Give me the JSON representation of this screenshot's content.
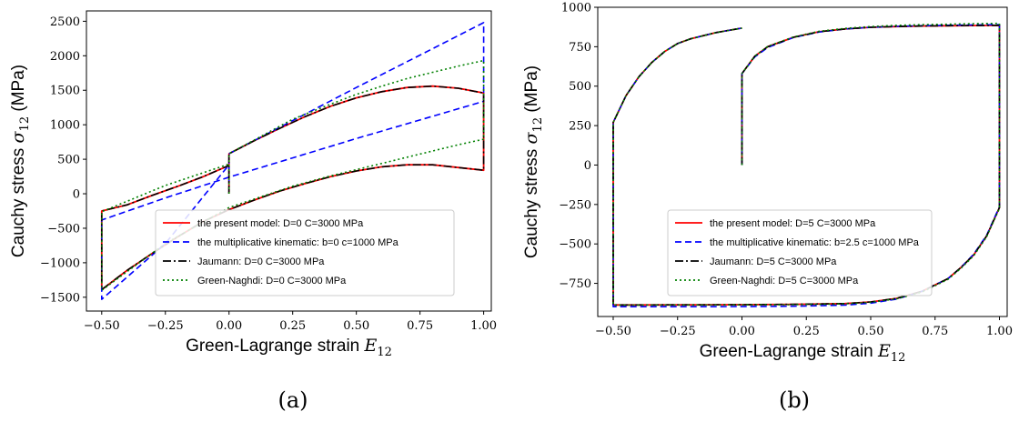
{
  "chart_data": [
    {
      "type": "line",
      "panel_label": "(a)",
      "xlabel": "Green-Lagrange strain",
      "xlabel_math": "E",
      "xlabel_sub": "12",
      "ylabel": "Cauchy stress",
      "ylabel_math": "σ",
      "ylabel_sub": "12",
      "ylabel_unit": "(MPa)",
      "xlim": [
        -0.56,
        1.03
      ],
      "ylim": [
        -1700,
        2650
      ],
      "xticks": [
        -0.5,
        -0.25,
        0.0,
        0.25,
        0.5,
        0.75,
        1.0
      ],
      "xtick_labels": [
        "−0.50",
        "−0.25",
        "0.00",
        "0.25",
        "0.50",
        "0.75",
        "1.00"
      ],
      "yticks": [
        -1500,
        -1000,
        -500,
        0,
        500,
        1000,
        1500,
        2000,
        2500
      ],
      "ytick_labels": [
        "−1500",
        "−1000",
        "−500",
        "0",
        "500",
        "1000",
        "1500",
        "2000",
        "2500"
      ],
      "legend_position": "lower-center",
      "series": [
        {
          "name": "the present model: D=0 C=3000 MPa",
          "color": "#ff0000",
          "dash": "solid",
          "x": [
            0,
            0,
            0.1,
            0.2,
            0.3,
            0.4,
            0.5,
            0.6,
            0.7,
            0.8,
            0.9,
            1.0,
            1.0,
            0.9,
            0.8,
            0.7,
            0.6,
            0.5,
            0.4,
            0.3,
            0.2,
            0.1,
            0.0,
            -0.1,
            -0.2,
            -0.3,
            -0.4,
            -0.5,
            -0.5,
            -0.4,
            -0.3,
            -0.2,
            -0.1,
            0.0
          ],
          "y": [
            0,
            580,
            770,
            950,
            1120,
            1270,
            1390,
            1480,
            1540,
            1560,
            1530,
            1460,
            340,
            380,
            420,
            420,
            390,
            330,
            250,
            150,
            40,
            -90,
            -230,
            -400,
            -620,
            -860,
            -1110,
            -1390,
            -250,
            -160,
            -20,
            110,
            250,
            410
          ]
        },
        {
          "name": "the multiplicative kinematic: b=0 c=1000 MPa",
          "color": "#0000ff",
          "dash": "7,4",
          "x": [
            0,
            0,
            0.25,
            0.5,
            0.75,
            1.0,
            1.0,
            0.75,
            0.5,
            0.25,
            0.0,
            -0.25,
            -0.5,
            -0.5,
            -0.25,
            0.0
          ],
          "y": [
            0,
            580,
            1060,
            1540,
            2010,
            2480,
            1340,
            1070,
            800,
            520,
            240,
            -60,
            -380,
            -1530,
            -720,
            420
          ]
        },
        {
          "name": "Jaumann: D=0 C=3000 MPa",
          "color": "#000000",
          "dash": "9,3,2,3",
          "x": [
            0,
            0,
            0.1,
            0.2,
            0.3,
            0.4,
            0.5,
            0.6,
            0.7,
            0.8,
            0.9,
            1.0,
            1.0,
            0.9,
            0.8,
            0.7,
            0.6,
            0.5,
            0.4,
            0.3,
            0.2,
            0.1,
            0.0,
            -0.1,
            -0.2,
            -0.3,
            -0.4,
            -0.5,
            -0.5,
            -0.4,
            -0.3,
            -0.2,
            -0.1,
            0.0
          ],
          "y": [
            0,
            580,
            770,
            950,
            1120,
            1270,
            1390,
            1480,
            1540,
            1560,
            1530,
            1460,
            340,
            380,
            420,
            420,
            390,
            330,
            250,
            150,
            40,
            -90,
            -230,
            -400,
            -620,
            -860,
            -1110,
            -1390,
            -250,
            -160,
            -20,
            110,
            250,
            410
          ]
        },
        {
          "name": "Green-Naghdi: D=0 C=3000 MPa",
          "color": "#008000",
          "dash": "2,3",
          "x": [
            0,
            0,
            0.25,
            0.4,
            0.5,
            0.6,
            0.7,
            0.8,
            0.9,
            1.0,
            1.0,
            0.9,
            0.8,
            0.7,
            0.6,
            0.5,
            0.4,
            0.25,
            0.0,
            -0.25,
            -0.5,
            -0.5,
            -0.25,
            0.0
          ],
          "y": [
            0,
            580,
            1080,
            1300,
            1440,
            1560,
            1670,
            1760,
            1850,
            1930,
            790,
            710,
            620,
            530,
            440,
            350,
            260,
            110,
            -200,
            -720,
            -1400,
            -260,
            120,
            430
          ]
        }
      ]
    },
    {
      "type": "line",
      "panel_label": "(b)",
      "xlabel": "Green-Lagrange strain",
      "xlabel_math": "E",
      "xlabel_sub": "12",
      "ylabel": "Cauchy stress",
      "ylabel_math": "σ",
      "ylabel_sub": "12",
      "ylabel_unit": "(MPa)",
      "xlim": [
        -0.56,
        1.03
      ],
      "ylim": [
        -960,
        1000
      ],
      "xticks": [
        -0.5,
        -0.25,
        0.0,
        0.25,
        0.5,
        0.75,
        1.0
      ],
      "xtick_labels": [
        "−0.50",
        "−0.25",
        "0.00",
        "0.25",
        "0.50",
        "0.75",
        "1.00"
      ],
      "yticks": [
        -750,
        -500,
        -250,
        0,
        250,
        500,
        750,
        1000
      ],
      "ytick_labels": [
        "−750",
        "−500",
        "−250",
        "0",
        "250",
        "500",
        "750",
        "1000"
      ],
      "legend_position": "lower-center",
      "series": [
        {
          "name": "the present model: D=5 C=3000 MPa",
          "color": "#ff0000",
          "dash": "solid",
          "x": [
            0,
            0,
            0.05,
            0.1,
            0.2,
            0.3,
            0.4,
            0.5,
            0.6,
            0.7,
            0.8,
            0.9,
            1.0,
            1.0,
            0.95,
            0.9,
            0.85,
            0.8,
            0.7,
            0.6,
            0.5,
            0.4,
            0.2,
            0.0,
            -0.2,
            -0.5,
            -0.5,
            -0.45,
            -0.4,
            -0.35,
            -0.3,
            -0.25,
            -0.2,
            -0.1,
            0.0
          ],
          "y": [
            0,
            580,
            690,
            750,
            810,
            845,
            862,
            873,
            878,
            881,
            883,
            884,
            885,
            -270,
            -450,
            -570,
            -650,
            -720,
            -800,
            -845,
            -868,
            -878,
            -883,
            -885,
            -886,
            -887,
            270,
            440,
            560,
            650,
            720,
            770,
            800,
            840,
            868
          ]
        },
        {
          "name": "the multiplicative kinematic: b=2.5 c=1000 MPa",
          "color": "#0000ff",
          "dash": "7,4",
          "x": [
            0,
            0,
            0.05,
            0.1,
            0.2,
            0.3,
            0.4,
            0.5,
            0.6,
            0.7,
            0.8,
            0.9,
            1.0,
            1.0,
            0.95,
            0.9,
            0.85,
            0.8,
            0.7,
            0.6,
            0.5,
            0.4,
            0.2,
            0.0,
            -0.2,
            -0.5,
            -0.5,
            -0.45,
            -0.4,
            -0.35,
            -0.3,
            -0.25,
            -0.2,
            -0.1,
            0.0
          ],
          "y": [
            0,
            580,
            685,
            745,
            808,
            843,
            862,
            873,
            879,
            883,
            886,
            888,
            890,
            -265,
            -445,
            -565,
            -650,
            -720,
            -800,
            -850,
            -875,
            -888,
            -895,
            -897,
            -898,
            -898,
            270,
            440,
            560,
            650,
            720,
            770,
            800,
            840,
            868
          ]
        },
        {
          "name": "Jaumann: D=5 C=3000 MPa",
          "color": "#000000",
          "dash": "9,3,2,3",
          "x": [
            0,
            0,
            0.05,
            0.1,
            0.2,
            0.3,
            0.4,
            0.5,
            0.6,
            0.7,
            0.8,
            0.9,
            1.0,
            1.0,
            0.95,
            0.9,
            0.85,
            0.8,
            0.7,
            0.6,
            0.5,
            0.4,
            0.2,
            0.0,
            -0.2,
            -0.5,
            -0.5,
            -0.45,
            -0.4,
            -0.35,
            -0.3,
            -0.25,
            -0.2,
            -0.1,
            0.0
          ],
          "y": [
            0,
            580,
            690,
            750,
            810,
            845,
            862,
            873,
            878,
            881,
            883,
            884,
            885,
            -270,
            -450,
            -570,
            -650,
            -720,
            -800,
            -845,
            -868,
            -878,
            -883,
            -885,
            -886,
            -887,
            270,
            440,
            560,
            650,
            720,
            770,
            800,
            840,
            868
          ]
        },
        {
          "name": "Green-Naghdi: D=5 C=3000 MPa",
          "color": "#008000",
          "dash": "2,3",
          "x": [
            0,
            0,
            0.05,
            0.1,
            0.2,
            0.3,
            0.4,
            0.5,
            0.6,
            0.7,
            0.8,
            0.9,
            1.0,
            1.0,
            0.95,
            0.9,
            0.85,
            0.8,
            0.7,
            0.6,
            0.5,
            0.4,
            0.2,
            0.0,
            -0.2,
            -0.5,
            -0.5,
            -0.45,
            -0.4,
            -0.35,
            -0.3,
            -0.25,
            -0.2,
            -0.1,
            0.0
          ],
          "y": [
            0,
            580,
            690,
            752,
            812,
            848,
            866,
            878,
            885,
            890,
            893,
            896,
            898,
            -275,
            -455,
            -575,
            -655,
            -725,
            -805,
            -848,
            -870,
            -880,
            -885,
            -886,
            -887,
            -888,
            270,
            440,
            560,
            650,
            720,
            770,
            800,
            840,
            868
          ]
        }
      ]
    }
  ]
}
